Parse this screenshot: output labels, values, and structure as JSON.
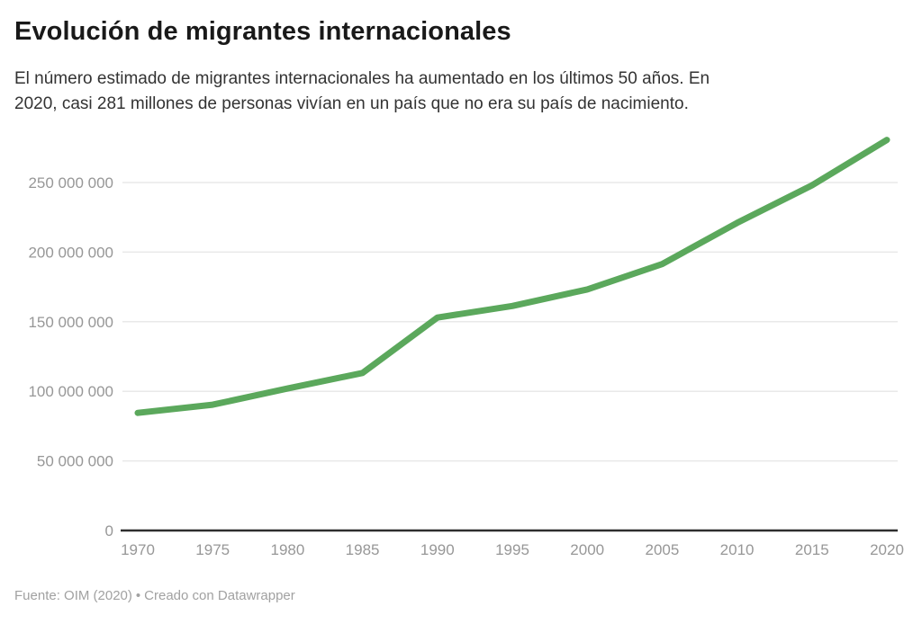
{
  "header": {
    "title": "Evolución de migrantes internacionales",
    "subtitle_lines": [
      "El número estimado de migrantes internacionales ha aumentado en los últimos 50 años. En",
      "2020, casi 281 millones de personas vivían en un país que no era su país de nacimiento."
    ]
  },
  "footer": {
    "source": "Fuente: OIM (2020)",
    "separator": "•",
    "attribution": "Creado con Datawrapper"
  },
  "chart_data": {
    "type": "line",
    "title": "Evolución de migrantes internacionales",
    "x": [
      1970,
      1975,
      1980,
      1985,
      1990,
      1995,
      2000,
      2005,
      2010,
      2015,
      2020
    ],
    "series": [
      {
        "name": "Migrantes internacionales",
        "values": [
          84500000,
          90400000,
          102000000,
          113200000,
          153000000,
          161300000,
          173200000,
          191400000,
          221000000,
          248000000,
          280600000
        ]
      }
    ],
    "xlabel": "",
    "ylabel": "",
    "ylim": [
      0,
      290000000
    ],
    "yticks": [
      0,
      50000000,
      100000000,
      150000000,
      200000000,
      250000000
    ],
    "grid": true,
    "legend": "none",
    "colors": {
      "line": "#5ba85c",
      "gridline": "#e9e9e9",
      "baseline": "#2e2e2e",
      "tick_label": "#979797",
      "title": "#191919",
      "subtitle": "#333333",
      "footer": "#a1a1a1"
    }
  }
}
